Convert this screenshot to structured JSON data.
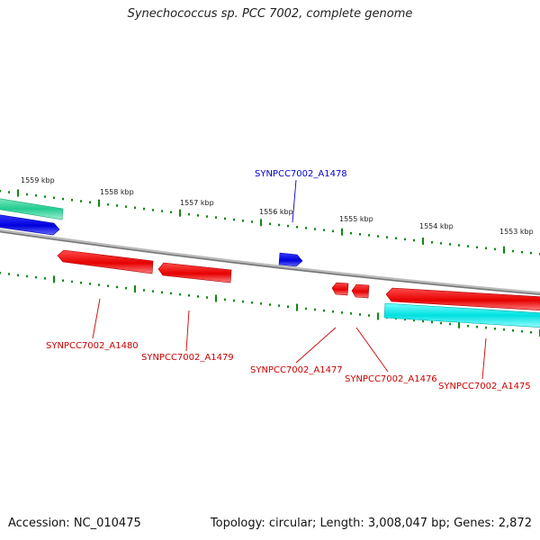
{
  "title": "Synechococcus sp. PCC 7002, complete genome",
  "footer": {
    "accession": "Accession: NC_010475",
    "summary": "Topology: circular; Length: 3,008,047 bp; Genes: 2,872"
  },
  "scale_labels": [
    "1559 kbp",
    "1558 kbp",
    "1557 kbp",
    "1556 kbp",
    "1555 kbp",
    "1554 kbp",
    "1553 kbp"
  ],
  "gene_labels": [
    {
      "name": "SYNPCC7002_A1478",
      "color": "#0000cc"
    },
    {
      "name": "SYNPCC7002_A1480",
      "color": "#cc0000"
    },
    {
      "name": "SYNPCC7002_A1479",
      "color": "#cc0000"
    },
    {
      "name": "SYNPCC7002_A1477",
      "color": "#cc0000"
    },
    {
      "name": "SYNPCC7002_A1476",
      "color": "#cc0000"
    },
    {
      "name": "SYNPCC7002_A1475",
      "color": "#cc0000"
    }
  ],
  "colors": {
    "backbone": "#888888",
    "ticks": "#118811",
    "forward_gene": "#0000ee",
    "reverse_gene": "#ee0000",
    "rna_outer": "#33ddaa",
    "rna_inner": "#00dddd"
  }
}
